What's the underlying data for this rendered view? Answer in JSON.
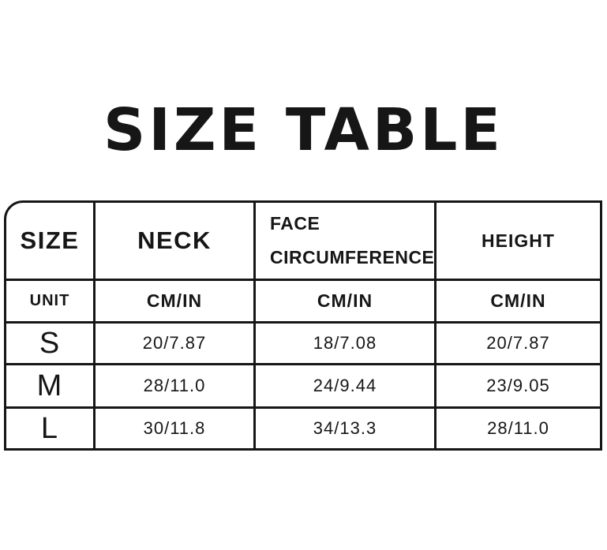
{
  "page": {
    "title": "SIZE TABLE"
  },
  "chart_data": {
    "type": "table",
    "title": "SIZE TABLE",
    "columns": [
      "SIZE",
      "NECK",
      "FACE CIRCUMFERENCE",
      "HEIGHT"
    ],
    "rows": [
      [
        "UNIT",
        "CM/IN",
        "CM/IN",
        "CM/IN"
      ],
      [
        "S",
        "20/7.87",
        "18/7.08",
        "20/7.87"
      ],
      [
        "M",
        "28/11.0",
        "24/9.44",
        "23/9.05"
      ],
      [
        "L",
        "30/11.8",
        "34/13.3",
        "28/11.0"
      ]
    ],
    "layout_hints": {
      "unit_row_label": "UNIT",
      "units": "CM/IN",
      "border_color": "#161616",
      "background_color": "#ffffff",
      "rounded_corner": "top-left"
    }
  }
}
